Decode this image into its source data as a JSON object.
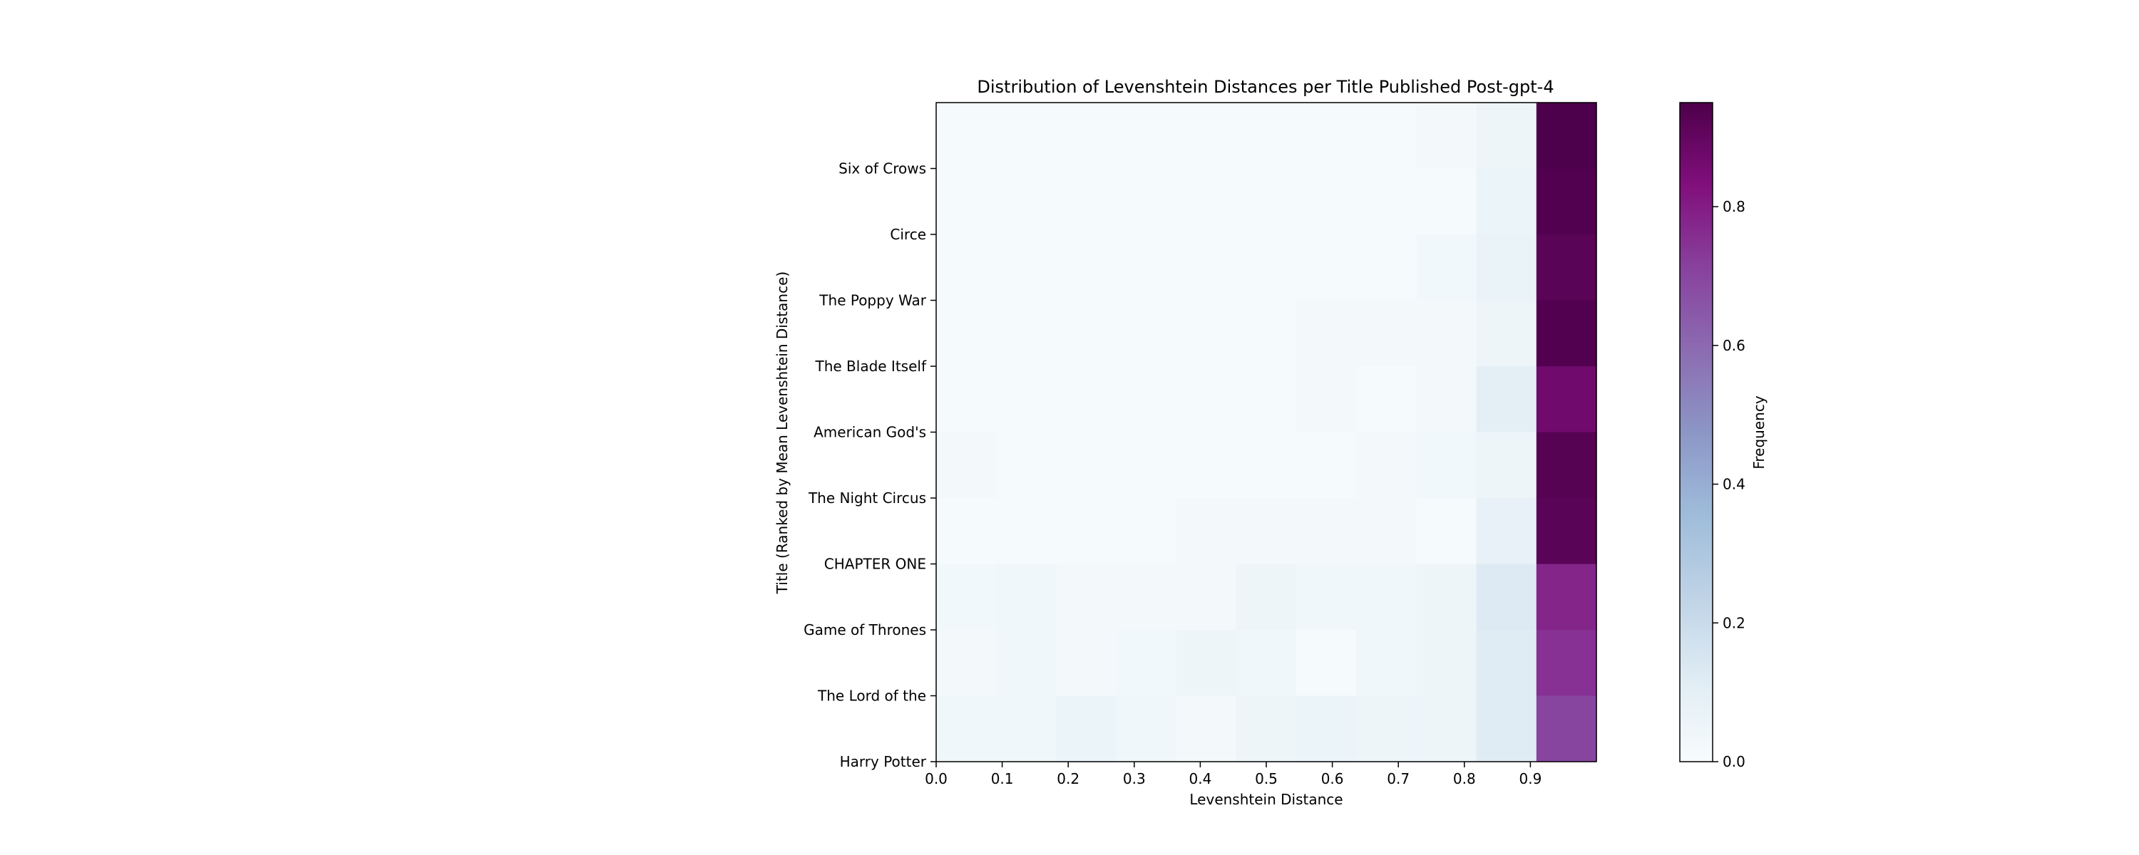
{
  "chart_data": {
    "type": "heatmap",
    "title": "Distribution of Levenshtein Distances per Title Published Post-gpt-4",
    "xlabel": "Levenshtein Distance",
    "ylabel": "Title (Ranked by Mean Levenshtein Distance)",
    "x_bins": [
      0.0,
      0.1,
      0.2,
      0.3,
      0.4,
      0.5,
      0.6,
      0.7,
      0.8,
      0.9,
      1.0
    ],
    "x_tick_labels": [
      "0.0",
      "0.1",
      "0.2",
      "0.3",
      "0.4",
      "0.5",
      "0.6",
      "0.7",
      "0.8",
      "0.9"
    ],
    "xlim": [
      0.0,
      1.0
    ],
    "y_tick_labels": [
      "Six of Crows",
      "Circe",
      "The Poppy War",
      "The Blade Itself",
      "American God's",
      "The Night Circus",
      "CHAPTER ONE",
      "Game of Thrones",
      "The Lord of the ",
      "Harry Potter"
    ],
    "values": [
      [
        0.01,
        0.01,
        0.01,
        0.01,
        0.01,
        0.01,
        0.01,
        0.01,
        0.02,
        0.05,
        0.95
      ],
      [
        0.01,
        0.01,
        0.01,
        0.01,
        0.01,
        0.01,
        0.01,
        0.01,
        0.01,
        0.06,
        0.94
      ],
      [
        0.01,
        0.01,
        0.01,
        0.01,
        0.01,
        0.01,
        0.01,
        0.01,
        0.03,
        0.07,
        0.92
      ],
      [
        0.01,
        0.01,
        0.01,
        0.01,
        0.01,
        0.01,
        0.02,
        0.02,
        0.02,
        0.05,
        0.94
      ],
      [
        0.01,
        0.01,
        0.01,
        0.01,
        0.01,
        0.01,
        0.02,
        0.01,
        0.02,
        0.1,
        0.87
      ],
      [
        0.02,
        0.01,
        0.01,
        0.01,
        0.01,
        0.01,
        0.01,
        0.02,
        0.03,
        0.05,
        0.93
      ],
      [
        0.01,
        0.01,
        0.01,
        0.01,
        0.02,
        0.02,
        0.02,
        0.02,
        0.01,
        0.08,
        0.92
      ],
      [
        0.03,
        0.04,
        0.02,
        0.02,
        0.02,
        0.05,
        0.04,
        0.04,
        0.05,
        0.13,
        0.78
      ],
      [
        0.02,
        0.04,
        0.02,
        0.03,
        0.05,
        0.04,
        0.01,
        0.04,
        0.05,
        0.12,
        0.75
      ],
      [
        0.04,
        0.04,
        0.06,
        0.04,
        0.02,
        0.05,
        0.06,
        0.05,
        0.05,
        0.12,
        0.7
      ]
    ],
    "colorbar": {
      "label": "Frequency",
      "colormap": "BuPu",
      "range": [
        0.0,
        0.95
      ],
      "ticks": [
        "0.0",
        "0.2",
        "0.4",
        "0.6",
        "0.8"
      ],
      "tick_values": [
        0.0,
        0.2,
        0.4,
        0.6,
        0.8
      ]
    },
    "colors": {
      "colormap_stops": [
        "#f7fcfd",
        "#e0ecf4",
        "#bfd3e6",
        "#9ebcda",
        "#8c96c6",
        "#8c6bb1",
        "#88419d",
        "#810f7c",
        "#4d004b"
      ]
    },
    "grid": false
  }
}
